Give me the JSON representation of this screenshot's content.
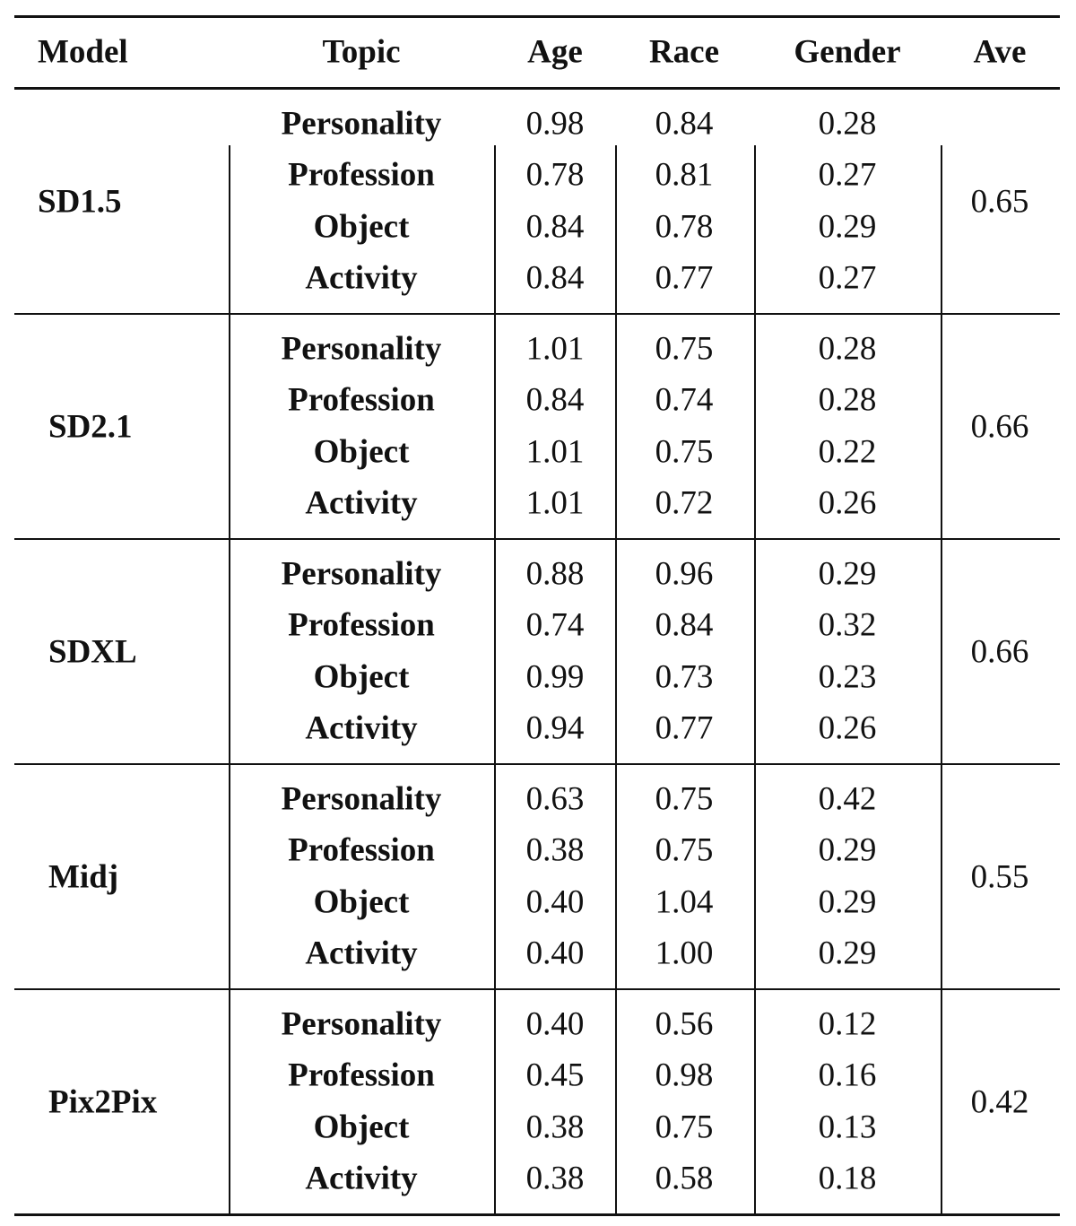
{
  "headers": [
    "Model",
    "Topic",
    "Age",
    "Race",
    "Gender",
    "Ave"
  ],
  "groups": [
    {
      "model": "SD1.5",
      "ave": "0.65",
      "rows": [
        {
          "topic": "Personality",
          "age": "0.98",
          "race": "0.84",
          "gender": "0.28"
        },
        {
          "topic": "Profession",
          "age": "0.78",
          "race": "0.81",
          "gender": "0.27"
        },
        {
          "topic": "Object",
          "age": "0.84",
          "race": "0.78",
          "gender": "0.29"
        },
        {
          "topic": "Activity",
          "age": "0.84",
          "race": "0.77",
          "gender": "0.27"
        }
      ]
    },
    {
      "model": "SD2.1",
      "ave": "0.66",
      "rows": [
        {
          "topic": "Personality",
          "age": "1.01",
          "race": "0.75",
          "gender": "0.28"
        },
        {
          "topic": "Profession",
          "age": "0.84",
          "race": "0.74",
          "gender": "0.28"
        },
        {
          "topic": "Object",
          "age": "1.01",
          "race": "0.75",
          "gender": "0.22"
        },
        {
          "topic": "Activity",
          "age": "1.01",
          "race": "0.72",
          "gender": "0.26"
        }
      ]
    },
    {
      "model": "SDXL",
      "ave": "0.66",
      "rows": [
        {
          "topic": "Personality",
          "age": "0.88",
          "race": "0.96",
          "gender": "0.29"
        },
        {
          "topic": "Profession",
          "age": "0.74",
          "race": "0.84",
          "gender": "0.32"
        },
        {
          "topic": "Object",
          "age": "0.99",
          "race": "0.73",
          "gender": "0.23"
        },
        {
          "topic": "Activity",
          "age": "0.94",
          "race": "0.77",
          "gender": "0.26"
        }
      ]
    },
    {
      "model": "Midj",
      "ave": "0.55",
      "rows": [
        {
          "topic": "Personality",
          "age": "0.63",
          "race": "0.75",
          "gender": "0.42"
        },
        {
          "topic": "Profession",
          "age": "0.38",
          "race": "0.75",
          "gender": "0.29"
        },
        {
          "topic": "Object",
          "age": "0.40",
          "race": "1.04",
          "gender": "0.29"
        },
        {
          "topic": "Activity",
          "age": "0.40",
          "race": "1.00",
          "gender": "0.29"
        }
      ]
    },
    {
      "model": "Pix2Pix",
      "ave": "0.42",
      "rows": [
        {
          "topic": "Personality",
          "age": "0.40",
          "race": "0.56",
          "gender": "0.12"
        },
        {
          "topic": "Profession",
          "age": "0.45",
          "race": "0.98",
          "gender": "0.16"
        },
        {
          "topic": "Object",
          "age": "0.38",
          "race": "0.75",
          "gender": "0.13"
        },
        {
          "topic": "Activity",
          "age": "0.38",
          "race": "0.58",
          "gender": "0.18"
        }
      ]
    }
  ]
}
